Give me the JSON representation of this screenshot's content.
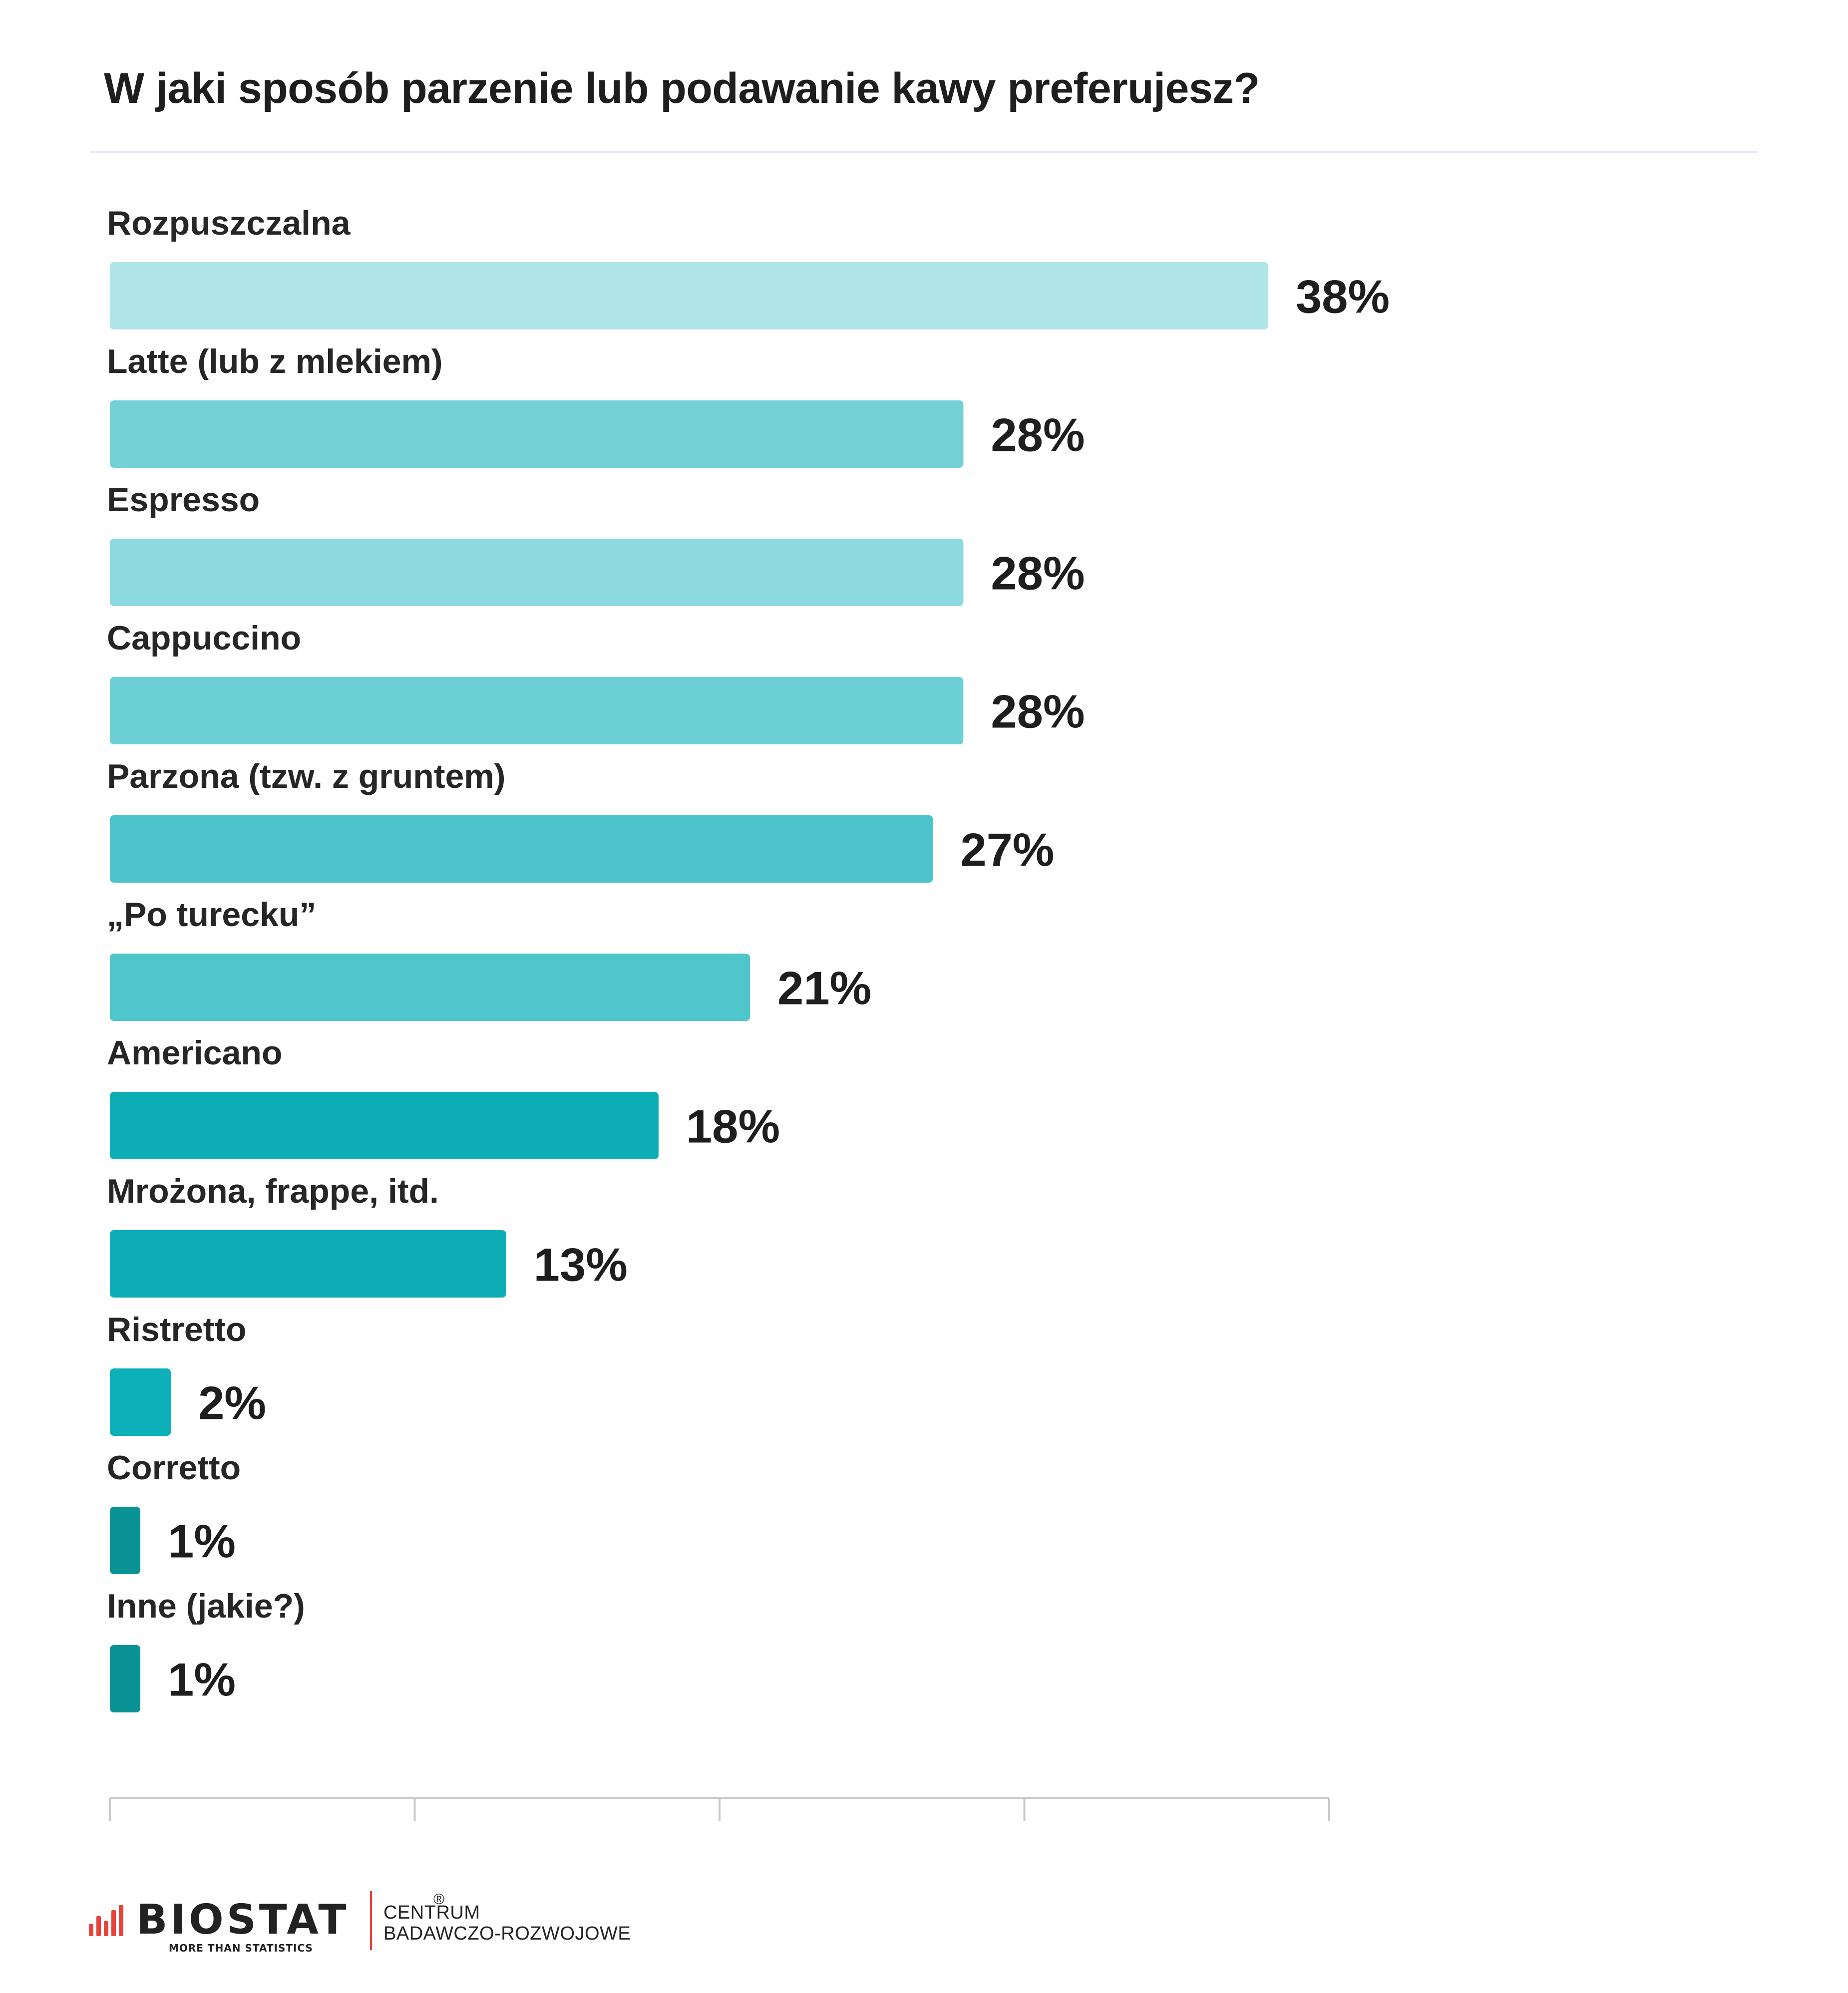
{
  "chart_data": {
    "type": "bar",
    "orientation": "horizontal",
    "title": "W jaki sposób parzenie lub podawanie kawy preferujesz?",
    "categories": [
      "Rozpuszczalna",
      "Latte (lub z mlekiem)",
      "Espresso",
      "Cappuccino",
      "Parzona (tzw. z gruntem)",
      "„Po turecku”",
      "Americano",
      "Mrożona, frappe, itd.",
      "Ristretto",
      "Corretto",
      "Inne (jakie?)"
    ],
    "values": [
      38,
      28,
      28,
      28,
      27,
      21,
      18,
      13,
      2,
      1,
      1
    ],
    "value_labels": [
      "38%",
      "28%",
      "28%",
      "28%",
      "27%",
      "21%",
      "18%",
      "13%",
      "2%",
      "1%",
      "1%"
    ],
    "unit": "%",
    "bar_colors": [
      "#b0e5e8",
      "#73d1d6",
      "#8cd9df",
      "#6cd0d6",
      "#4dc4cb",
      "#4fc5cc",
      "#0dadb6",
      "#0dadb6",
      "#0db0b9",
      "#0a9394",
      "#0a9394"
    ],
    "xlim": [
      0,
      40
    ],
    "grid": false,
    "legend": "none"
  },
  "branding": {
    "logo_text": "BIOSTAT",
    "registered_mark": "®",
    "tagline": "MORE THAN STATISTICS",
    "org_line1": "CENTRUM",
    "org_line2": "BADAWCZO-ROZWOJOWE",
    "accent_color": "#e8423a"
  }
}
